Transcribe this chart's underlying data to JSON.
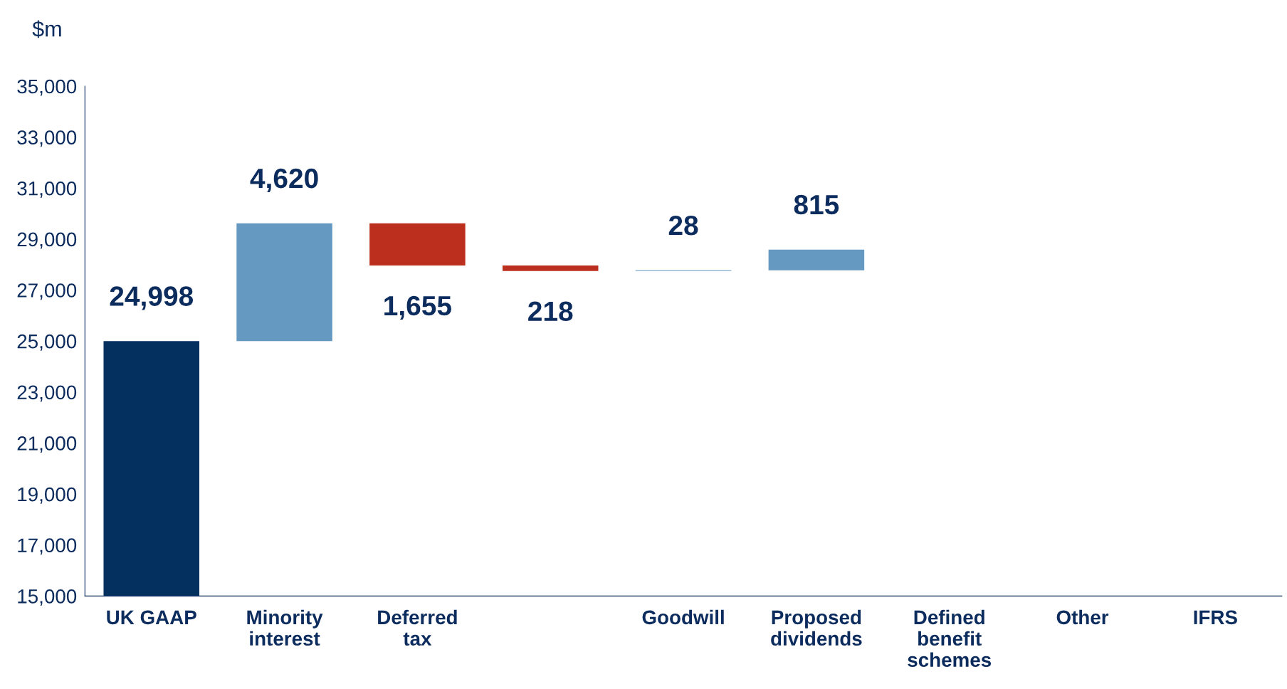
{
  "chart_data": {
    "type": "bar",
    "ylabel": "$m",
    "categories": [
      "UK GAAP",
      "Minority\ninterest",
      "Deferred\ntax",
      null,
      "Goodwill",
      "Proposed\ndividends",
      "Defined\nbenefit\nschemes",
      "Other",
      "IFRS"
    ],
    "values": [
      24998,
      4620,
      1655,
      218,
      28,
      815,
      null,
      null,
      null
    ],
    "base": [
      0,
      24998,
      27963,
      27745,
      27745,
      27773,
      null,
      null,
      null
    ],
    "colors": [
      "#03305f",
      "#6699c2",
      "#bc2f1e",
      "#bc2f1e",
      "#6699c2",
      "#6699c2",
      null,
      null,
      null
    ],
    "value_labels": [
      "24,998",
      "4,620",
      "1,655",
      "218",
      "28",
      "815",
      null,
      null,
      null
    ],
    "ylim": [
      15000,
      35000
    ],
    "yticks": [
      {
        "value": 15000,
        "label": "15,000"
      },
      {
        "value": 17000,
        "label": "17,000"
      },
      {
        "value": 19000,
        "label": "19,000"
      },
      {
        "value": 21000,
        "label": "21,000"
      },
      {
        "value": 23000,
        "label": "23,000"
      },
      {
        "value": 25000,
        "label": "25,000"
      },
      {
        "value": 27000,
        "label": "27,000"
      },
      {
        "value": 29000,
        "label": "29,000"
      },
      {
        "value": 31000,
        "label": "31,000"
      },
      {
        "value": 33000,
        "label": "33,000"
      },
      {
        "value": 35000,
        "label": "35,000"
      }
    ],
    "grid": false,
    "legend": false
  }
}
